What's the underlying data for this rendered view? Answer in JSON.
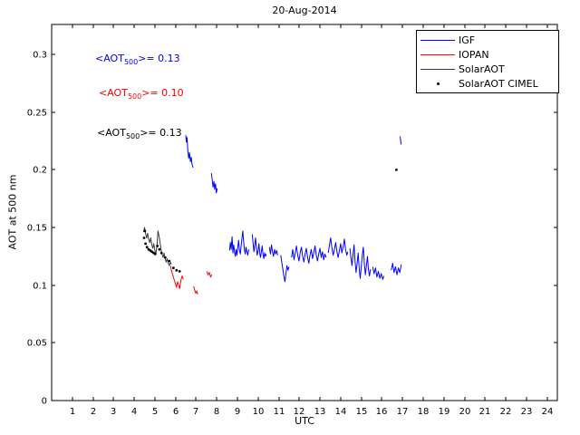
{
  "chart_data": {
    "type": "line",
    "title": "20-Aug-2014",
    "xlabel": "UTC",
    "ylabel": "AOT at 500 nm",
    "xlim": [
      0,
      24.5
    ],
    "ylim": [
      0,
      0.326
    ],
    "x_ticks": [
      1,
      2,
      3,
      4,
      5,
      6,
      7,
      8,
      9,
      10,
      11,
      12,
      13,
      14,
      15,
      16,
      17,
      18,
      19,
      20,
      21,
      22,
      23,
      24
    ],
    "y_ticks": [
      0,
      0.05,
      0.1,
      0.15,
      0.2,
      0.25,
      0.3
    ],
    "y_tick_labels": [
      "0",
      "0.05",
      "0.1",
      "0.15",
      "0.2",
      "0.25",
      "0.3"
    ],
    "grid": false,
    "legend_position": "top-right",
    "series": [
      {
        "name": "IGF",
        "color": "#0000ff",
        "style": "line",
        "segments": [
          [
            [
              6.5,
              0.23
            ],
            [
              6.53,
              0.224
            ],
            [
              6.56,
              0.228
            ],
            [
              6.6,
              0.216
            ],
            [
              6.64,
              0.21
            ],
            [
              6.68,
              0.215
            ],
            [
              6.72,
              0.207
            ],
            [
              6.76,
              0.211
            ],
            [
              6.8,
              0.205
            ],
            [
              6.85,
              0.202
            ]
          ],
          [
            [
              7.74,
              0.197
            ],
            [
              7.78,
              0.191
            ],
            [
              7.82,
              0.185
            ],
            [
              7.86,
              0.19
            ],
            [
              7.9,
              0.183
            ],
            [
              7.94,
              0.188
            ],
            [
              7.98,
              0.18
            ],
            [
              8.02,
              0.184
            ]
          ],
          [
            [
              8.62,
              0.13
            ],
            [
              8.66,
              0.137
            ],
            [
              8.7,
              0.131
            ],
            [
              8.74,
              0.142
            ],
            [
              8.78,
              0.128
            ],
            [
              8.82,
              0.135
            ],
            [
              8.86,
              0.129
            ],
            [
              8.9,
              0.125
            ],
            [
              8.94,
              0.131
            ],
            [
              8.98,
              0.126
            ],
            [
              9.02,
              0.133
            ],
            [
              9.06,
              0.139
            ],
            [
              9.1,
              0.13
            ],
            [
              9.14,
              0.127
            ],
            [
              9.18,
              0.134
            ],
            [
              9.22,
              0.141
            ],
            [
              9.26,
              0.147
            ],
            [
              9.3,
              0.138
            ],
            [
              9.34,
              0.131
            ],
            [
              9.38,
              0.127
            ],
            [
              9.42,
              0.133
            ],
            [
              9.46,
              0.129
            ],
            [
              9.5,
              0.126
            ],
            [
              9.55,
              0.131
            ]
          ],
          [
            [
              9.72,
              0.144
            ],
            [
              9.76,
              0.136
            ],
            [
              9.8,
              0.129
            ],
            [
              9.84,
              0.135
            ],
            [
              9.88,
              0.141
            ],
            [
              9.92,
              0.132
            ],
            [
              9.96,
              0.126
            ],
            [
              10.0,
              0.13
            ],
            [
              10.04,
              0.136
            ],
            [
              10.08,
              0.128
            ],
            [
              10.12,
              0.124
            ],
            [
              10.16,
              0.129
            ],
            [
              10.2,
              0.134
            ],
            [
              10.24,
              0.127
            ],
            [
              10.28,
              0.123
            ],
            [
              10.32,
              0.128
            ],
            [
              10.36,
              0.125
            ],
            [
              10.4,
              0.127
            ]
          ],
          [
            [
              10.55,
              0.133
            ],
            [
              10.6,
              0.127
            ],
            [
              10.65,
              0.135
            ],
            [
              10.7,
              0.129
            ],
            [
              10.75,
              0.125
            ],
            [
              10.8,
              0.131
            ],
            [
              10.85,
              0.127
            ],
            [
              10.9,
              0.13
            ],
            [
              10.95,
              0.126
            ]
          ],
          [
            [
              11.1,
              0.126
            ],
            [
              11.15,
              0.12
            ],
            [
              11.2,
              0.114
            ],
            [
              11.25,
              0.108
            ],
            [
              11.3,
              0.103
            ],
            [
              11.35,
              0.11
            ],
            [
              11.4,
              0.117
            ],
            [
              11.45,
              0.113
            ],
            [
              11.5,
              0.116
            ]
          ],
          [
            [
              11.62,
              0.124
            ],
            [
              11.68,
              0.131
            ],
            [
              11.74,
              0.122
            ],
            [
              11.8,
              0.128
            ],
            [
              11.86,
              0.134
            ],
            [
              11.92,
              0.126
            ],
            [
              11.98,
              0.121
            ],
            [
              12.04,
              0.128
            ],
            [
              12.1,
              0.133
            ],
            [
              12.16,
              0.125
            ],
            [
              12.22,
              0.12
            ],
            [
              12.28,
              0.127
            ],
            [
              12.34,
              0.132
            ],
            [
              12.4,
              0.124
            ],
            [
              12.46,
              0.119
            ],
            [
              12.52,
              0.126
            ],
            [
              12.58,
              0.131
            ],
            [
              12.64,
              0.123
            ],
            [
              12.7,
              0.128
            ],
            [
              12.76,
              0.134
            ],
            [
              12.82,
              0.126
            ],
            [
              12.88,
              0.121
            ],
            [
              12.94,
              0.127
            ],
            [
              13.0,
              0.132
            ],
            [
              13.06,
              0.124
            ],
            [
              13.12,
              0.129
            ],
            [
              13.18,
              0.122
            ],
            [
              13.24,
              0.127
            ],
            [
              13.3,
              0.124
            ]
          ],
          [
            [
              13.4,
              0.128
            ],
            [
              13.46,
              0.135
            ],
            [
              13.52,
              0.141
            ],
            [
              13.58,
              0.132
            ],
            [
              13.64,
              0.126
            ],
            [
              13.7,
              0.131
            ],
            [
              13.76,
              0.137
            ],
            [
              13.82,
              0.129
            ],
            [
              13.88,
              0.124
            ],
            [
              13.94,
              0.13
            ],
            [
              14.0,
              0.136
            ],
            [
              14.06,
              0.128
            ],
            [
              14.12,
              0.133
            ],
            [
              14.18,
              0.14
            ],
            [
              14.24,
              0.131
            ],
            [
              14.3,
              0.126
            ],
            [
              14.35,
              0.129
            ]
          ],
          [
            [
              14.45,
              0.132
            ],
            [
              14.5,
              0.124
            ],
            [
              14.55,
              0.117
            ],
            [
              14.6,
              0.126
            ],
            [
              14.65,
              0.135
            ],
            [
              14.7,
              0.121
            ],
            [
              14.75,
              0.111
            ],
            [
              14.8,
              0.119
            ],
            [
              14.85,
              0.128
            ],
            [
              14.9,
              0.114
            ],
            [
              14.95,
              0.106
            ],
            [
              15.0,
              0.116
            ],
            [
              15.05,
              0.126
            ],
            [
              15.1,
              0.133
            ],
            [
              15.15,
              0.119
            ],
            [
              15.2,
              0.109
            ],
            [
              15.25,
              0.117
            ],
            [
              15.3,
              0.125
            ],
            [
              15.35,
              0.113
            ],
            [
              15.4,
              0.108
            ],
            [
              15.45,
              0.114
            ]
          ],
          [
            [
              15.55,
              0.116
            ],
            [
              15.62,
              0.11
            ],
            [
              15.69,
              0.115
            ],
            [
              15.76,
              0.107
            ],
            [
              15.83,
              0.112
            ],
            [
              15.9,
              0.106
            ],
            [
              15.97,
              0.11
            ],
            [
              16.04,
              0.105
            ],
            [
              16.1,
              0.108
            ]
          ],
          [
            [
              16.45,
              0.113
            ],
            [
              16.52,
              0.119
            ],
            [
              16.59,
              0.111
            ],
            [
              16.66,
              0.116
            ],
            [
              16.73,
              0.109
            ],
            [
              16.8,
              0.115
            ],
            [
              16.87,
              0.111
            ],
            [
              16.94,
              0.118
            ]
          ],
          [
            [
              16.88,
              0.229
            ],
            [
              16.93,
              0.222
            ]
          ]
        ]
      },
      {
        "name": "IOPAN",
        "color": "#ff0000",
        "style": "line",
        "segments": [
          [
            [
              5.75,
              0.117
            ],
            [
              5.8,
              0.113
            ],
            [
              5.85,
              0.11
            ],
            [
              5.9,
              0.107
            ],
            [
              5.95,
              0.104
            ],
            [
              6.0,
              0.101
            ],
            [
              6.05,
              0.098
            ],
            [
              6.1,
              0.103
            ],
            [
              6.15,
              0.1
            ],
            [
              6.2,
              0.097
            ],
            [
              6.26,
              0.104
            ],
            [
              6.32,
              0.108
            ],
            [
              6.38,
              0.105
            ]
          ],
          [
            [
              6.88,
              0.099
            ],
            [
              6.93,
              0.096
            ],
            [
              6.98,
              0.093
            ],
            [
              7.03,
              0.095
            ],
            [
              7.08,
              0.092
            ]
          ],
          [
            [
              7.52,
              0.112
            ],
            [
              7.58,
              0.109
            ],
            [
              7.64,
              0.111
            ],
            [
              7.7,
              0.107
            ],
            [
              7.76,
              0.109
            ]
          ]
        ]
      },
      {
        "name": "SolarAOT",
        "color": "#3a3a3a",
        "style": "line",
        "segments": [
          [
            [
              4.45,
              0.146
            ],
            [
              4.5,
              0.15
            ],
            [
              4.55,
              0.145
            ],
            [
              4.6,
              0.141
            ],
            [
              4.65,
              0.145
            ],
            [
              4.7,
              0.14
            ],
            [
              4.75,
              0.137
            ],
            [
              4.8,
              0.141
            ],
            [
              4.85,
              0.135
            ],
            [
              4.9,
              0.132
            ],
            [
              4.95,
              0.136
            ],
            [
              5.0,
              0.13
            ],
            [
              5.05,
              0.127
            ],
            [
              5.1,
              0.134
            ],
            [
              5.15,
              0.147
            ],
            [
              5.2,
              0.143
            ],
            [
              5.25,
              0.137
            ],
            [
              5.3,
              0.131
            ],
            [
              5.35,
              0.127
            ],
            [
              5.4,
              0.124
            ],
            [
              5.45,
              0.128
            ],
            [
              5.5,
              0.123
            ],
            [
              5.55,
              0.12
            ],
            [
              5.6,
              0.123
            ],
            [
              5.65,
              0.119
            ],
            [
              5.7,
              0.117
            ],
            [
              5.75,
              0.12
            ],
            [
              5.8,
              0.118
            ]
          ]
        ]
      },
      {
        "name": "SolarAOT CIMEL",
        "color": "#000000",
        "style": "dots",
        "points": [
          [
            4.48,
            0.141
          ],
          [
            4.52,
            0.147
          ],
          [
            4.55,
            0.136
          ],
          [
            4.62,
            0.133
          ],
          [
            4.7,
            0.131
          ],
          [
            4.78,
            0.13
          ],
          [
            4.86,
            0.129
          ],
          [
            4.94,
            0.128
          ],
          [
            5.02,
            0.127
          ],
          [
            5.12,
            0.134
          ],
          [
            5.22,
            0.131
          ],
          [
            5.32,
            0.128
          ],
          [
            5.5,
            0.124
          ],
          [
            5.7,
            0.121
          ],
          [
            5.9,
            0.115
          ],
          [
            6.05,
            0.113
          ],
          [
            6.2,
            0.112
          ],
          [
            16.7,
            0.2
          ]
        ]
      }
    ],
    "annotations": [
      {
        "prefix": "<AOT",
        "sub": "500",
        "suffix": ">= 0.13",
        "color": "#0000ff",
        "x": 2.1,
        "y": 0.296
      },
      {
        "prefix": "<AOT",
        "sub": "500",
        "suffix": ">= 0.10",
        "color": "#ff0000",
        "x": 2.3,
        "y": 0.266
      },
      {
        "prefix": "<AOT",
        "sub": "500",
        "suffix": ">= 0.13",
        "color": "#000000",
        "x": 2.2,
        "y": 0.232
      }
    ]
  }
}
